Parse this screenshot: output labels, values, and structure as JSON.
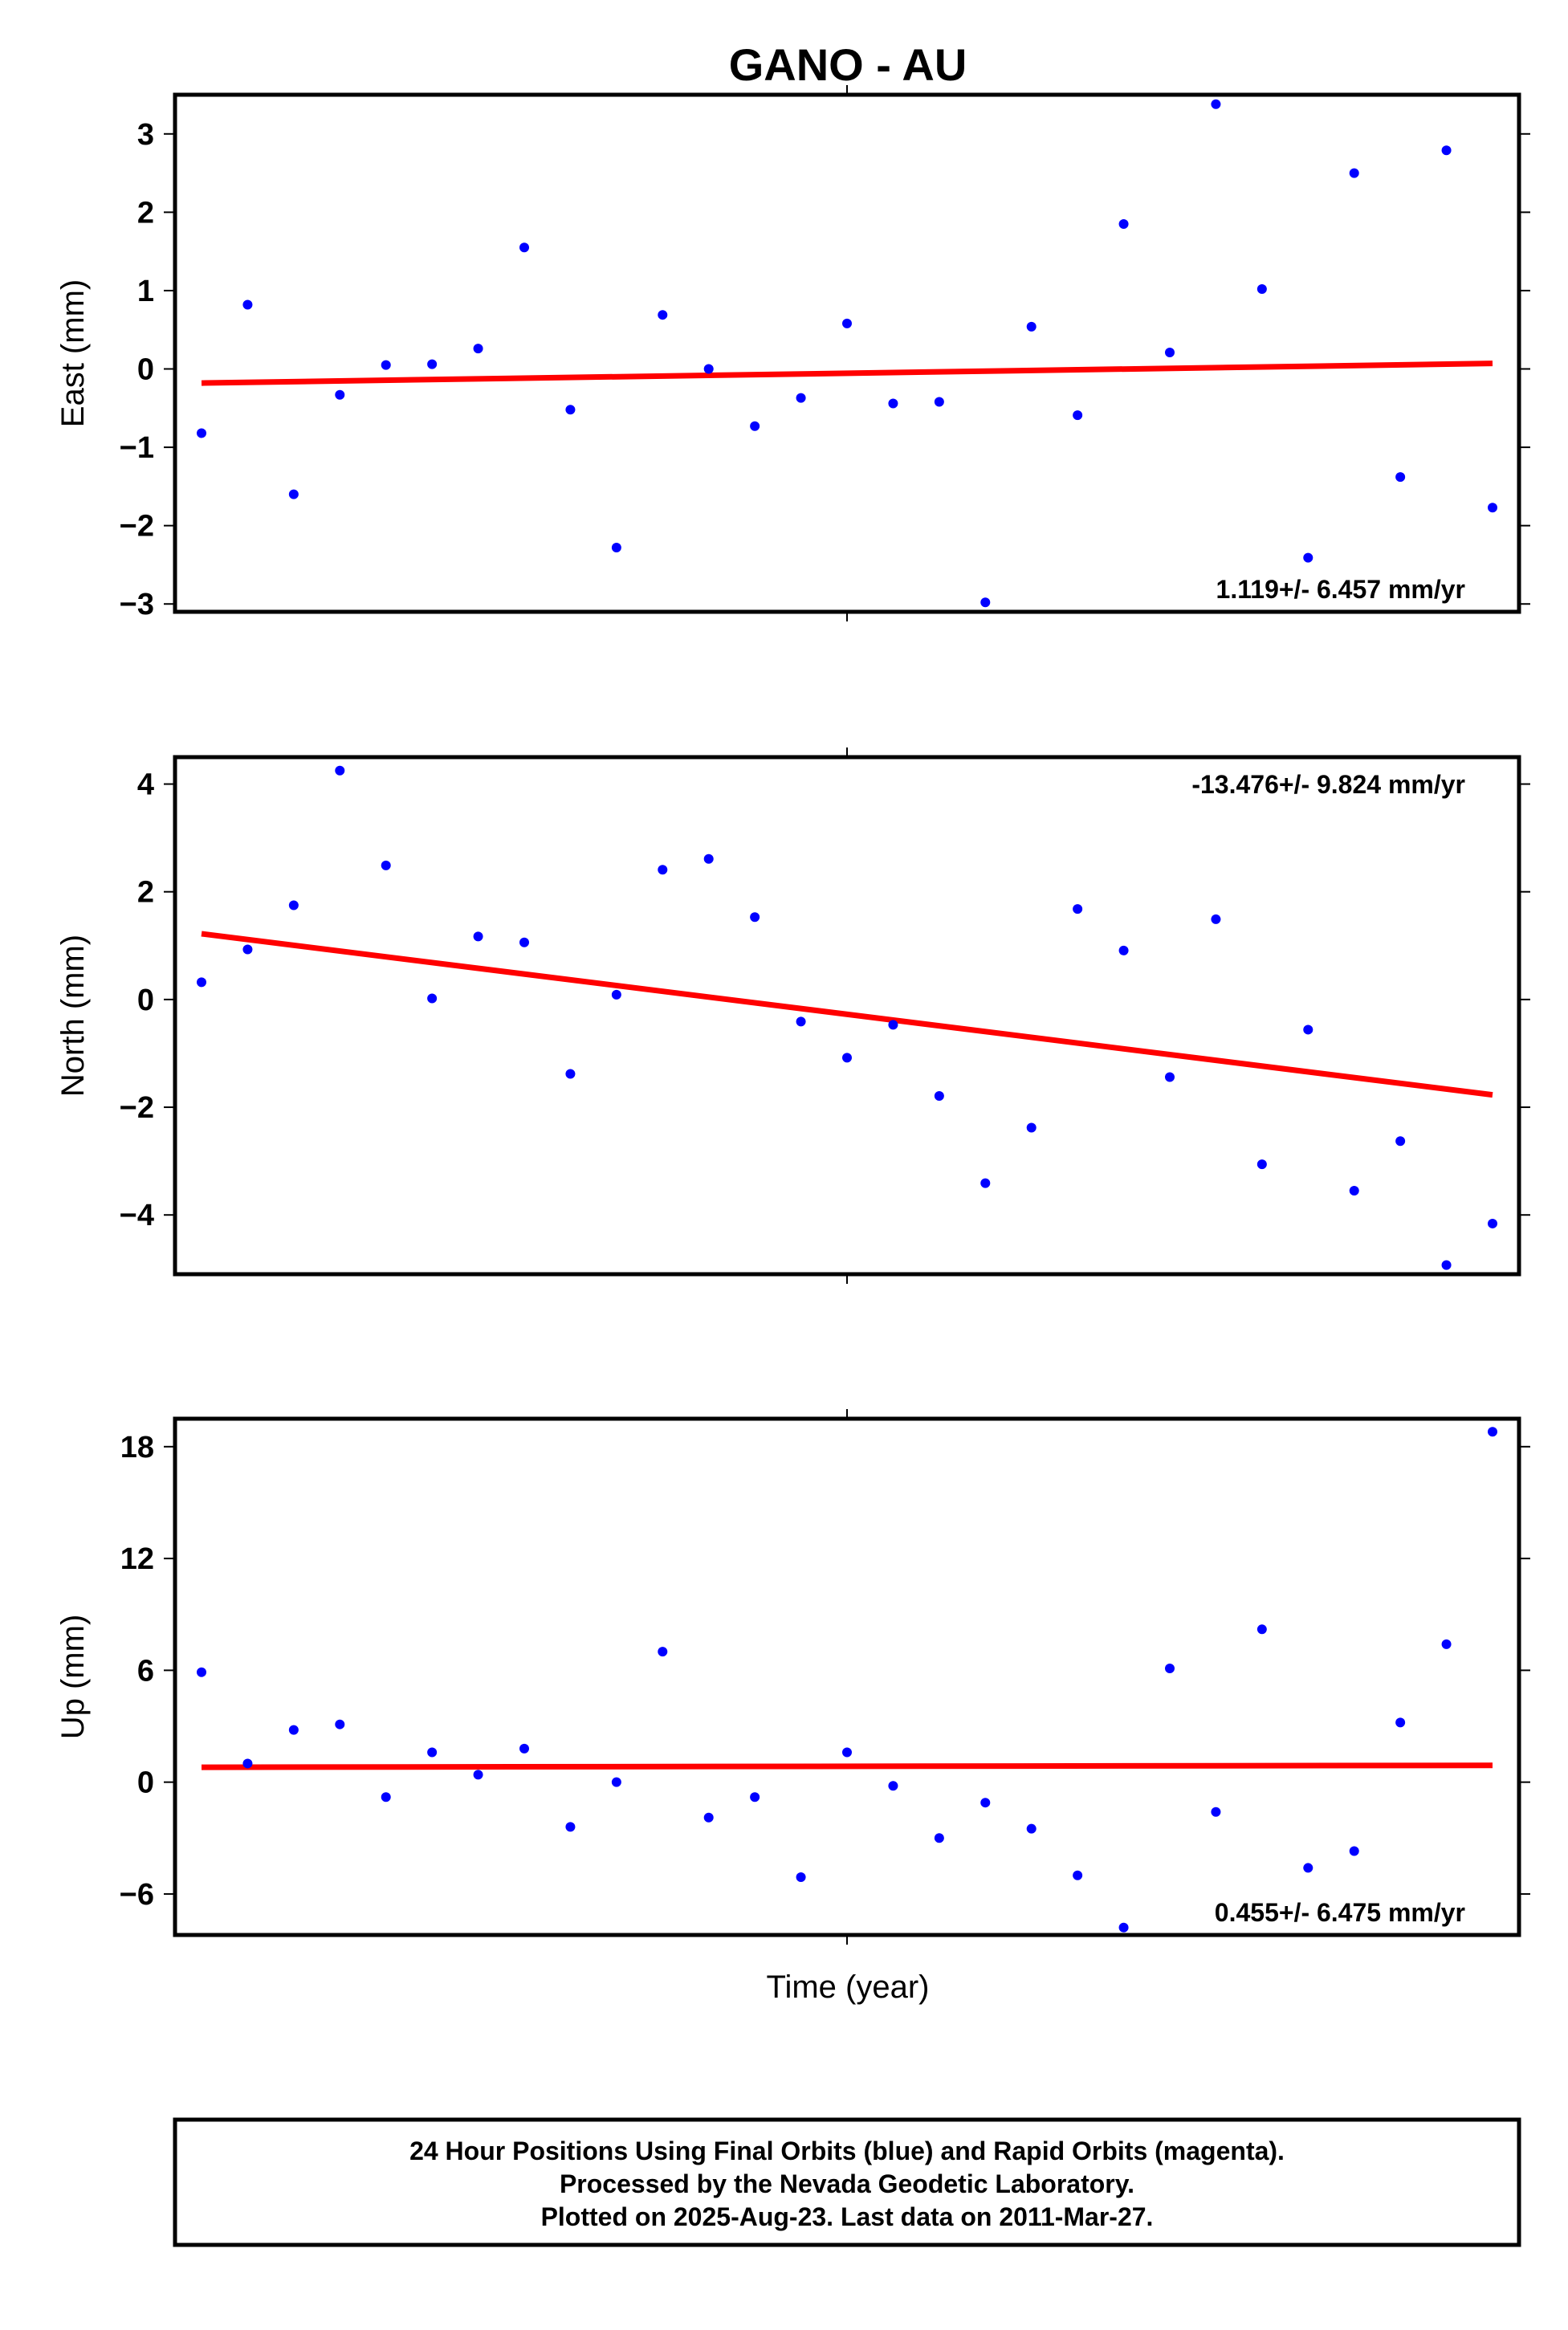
{
  "title": "GANO - AU",
  "footer": {
    "line1": "24 Hour Positions Using Final Orbits (blue) and Rapid Orbits (magenta).",
    "line2": "Processed by the Nevada Geodetic Laboratory.",
    "line3": "Plotted on 2025-Aug-23. Last data on 2011-Mar-27."
  },
  "xlabel": "Time (year)",
  "colors": {
    "points": "#0000ff",
    "trend": "#ff0000",
    "frame": "#000000"
  },
  "chart_data": [
    {
      "type": "scatter",
      "ylabel": "East (mm)",
      "ylim": [
        -3.1,
        3.5
      ],
      "yticks": [
        3,
        2,
        1,
        0,
        -1,
        -2,
        -3
      ],
      "ytick_labels": [
        "3",
        "2",
        "1",
        "0",
        "−1",
        "−2",
        "−3"
      ],
      "grid": false,
      "rate_label": "1.119+/- 6.457 mm/yr",
      "rate_position": "bottom-right",
      "x": [
        0,
        1,
        2,
        3,
        4,
        5,
        6,
        7,
        8,
        9,
        10,
        11,
        12,
        13,
        14,
        15,
        16,
        17,
        18,
        19,
        20,
        21,
        22,
        23,
        24,
        25,
        26,
        27,
        28
      ],
      "values": [
        -0.82,
        0.82,
        -1.6,
        -0.33,
        0.05,
        0.06,
        0.26,
        1.55,
        -0.52,
        -2.28,
        0.69,
        0.0,
        -0.73,
        -0.37,
        0.58,
        -0.44,
        -0.42,
        -2.98,
        0.54,
        -0.59,
        1.85,
        0.21,
        3.38,
        1.02,
        -2.41,
        2.5,
        -1.38,
        2.79,
        -1.77
      ],
      "trend": [
        -0.18,
        0.07
      ]
    },
    {
      "type": "scatter",
      "ylabel": "North (mm)",
      "ylim": [
        -5.1,
        4.5
      ],
      "yticks": [
        4,
        2,
        0,
        -2,
        -4
      ],
      "ytick_labels": [
        "4",
        "2",
        "0",
        "−2",
        "−4"
      ],
      "grid": false,
      "rate_label": "-13.476+/- 9.824 mm/yr",
      "rate_position": "top-right",
      "x": [
        0,
        1,
        2,
        3,
        4,
        5,
        6,
        7,
        8,
        9,
        10,
        11,
        12,
        13,
        14,
        15,
        16,
        17,
        18,
        19,
        20,
        21,
        22,
        23,
        24,
        25,
        26,
        27,
        28
      ],
      "values": [
        0.32,
        0.93,
        1.75,
        4.25,
        2.49,
        0.02,
        1.17,
        1.06,
        -1.38,
        0.09,
        2.41,
        2.61,
        1.53,
        -0.41,
        -1.08,
        -0.47,
        -1.79,
        -3.41,
        -2.38,
        1.68,
        0.91,
        -1.44,
        1.49,
        -3.06,
        -0.56,
        -3.55,
        -2.63,
        -4.93,
        -4.16
      ],
      "trend": [
        1.22,
        -1.77
      ]
    },
    {
      "type": "scatter",
      "ylabel": "Up (mm)",
      "ylim": [
        -8.2,
        19.5
      ],
      "yticks": [
        18,
        12,
        6,
        0,
        -6
      ],
      "ytick_labels": [
        "18",
        "12",
        "6",
        "0",
        "−6"
      ],
      "grid": false,
      "rate_label": "0.455+/- 6.475 mm/yr",
      "rate_position": "bottom-right",
      "x": [
        0,
        1,
        2,
        3,
        4,
        5,
        6,
        7,
        8,
        9,
        10,
        11,
        12,
        13,
        14,
        15,
        16,
        17,
        18,
        19,
        20,
        21,
        22,
        23,
        24,
        25,
        26,
        27,
        28
      ],
      "values": [
        5.9,
        1.0,
        2.8,
        3.1,
        -0.8,
        1.6,
        0.4,
        1.8,
        -2.4,
        0.0,
        7.0,
        -1.9,
        -0.8,
        -5.1,
        1.6,
        -0.2,
        -3.0,
        -1.1,
        -2.5,
        -5.0,
        -7.8,
        6.1,
        -1.6,
        8.2,
        -4.6,
        -3.7,
        3.2,
        7.4,
        18.8
      ],
      "trend": [
        0.8,
        0.9
      ]
    }
  ]
}
